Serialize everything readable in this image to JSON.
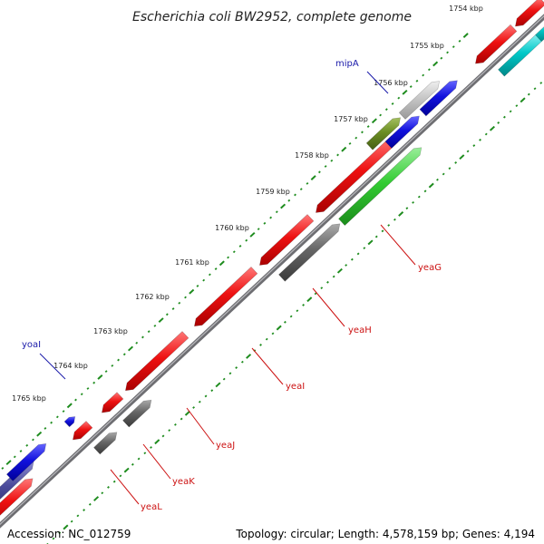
{
  "title": "Escherichia coli BW2952, complete genome",
  "kbp_marks": [
    "1754 kbp",
    "1755 kbp",
    "1756 kbp",
    "1757 kbp",
    "1758 kbp",
    "1759 kbp",
    "1760 kbp",
    "1761 kbp",
    "1762 kbp",
    "1763 kbp",
    "1764 kbp",
    "1765 kbp"
  ],
  "gene_labels": [
    {
      "name": "mipA",
      "color": "#1a1aaa"
    },
    {
      "name": "yeaG",
      "color": "#cc1111"
    },
    {
      "name": "yeaH",
      "color": "#cc1111"
    },
    {
      "name": "yeaI",
      "color": "#cc1111"
    },
    {
      "name": "yeaJ",
      "color": "#cc1111"
    },
    {
      "name": "yeaK",
      "color": "#cc1111"
    },
    {
      "name": "yeaL",
      "color": "#cc1111"
    },
    {
      "name": "yoaI",
      "color": "#1a1aaa"
    }
  ],
  "colors": {
    "backbone": "#8a8a8e",
    "tick": "#1e8c1e",
    "red": "#ee1111",
    "blue": "#1111dd",
    "green": "#33cc33",
    "gray": "#666666",
    "light_gray": "#c6c6c6",
    "olive": "#6b8e23",
    "cyan": "#00c8c8",
    "navy": "#4a4a9a"
  },
  "footer": {
    "accession": "Accession: NC_012759",
    "topology": "Topology: circular; Length: 4,578,159 bp; Genes: 4,194"
  }
}
